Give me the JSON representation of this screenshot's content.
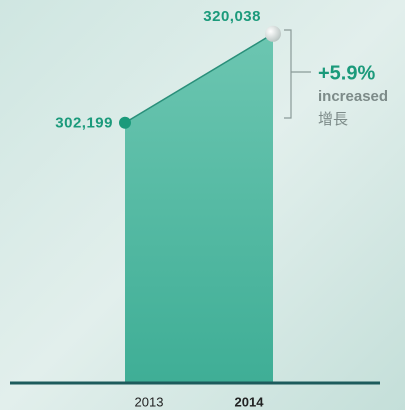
{
  "chart_data": {
    "type": "area",
    "categories": [
      "2013",
      "2014"
    ],
    "values": [
      302199,
      320038
    ],
    "value_labels": [
      "302,199",
      "320,038"
    ],
    "color": "#5cbfa9",
    "line_color": "#2a8f7a",
    "label_color": "#1b9a7b",
    "ylim": [
      250000,
      322000
    ],
    "annotation": {
      "change": "+5.9%",
      "label": "increased",
      "label_zh": "增長"
    }
  }
}
